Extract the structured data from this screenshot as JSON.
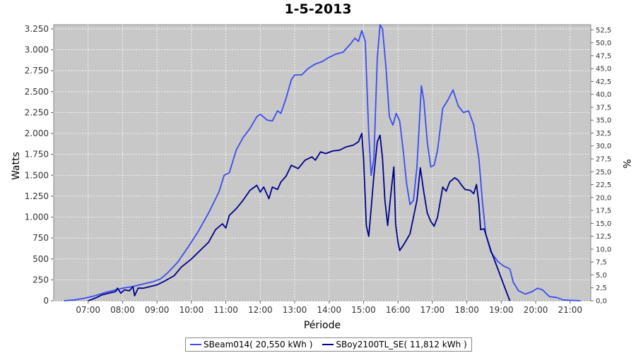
{
  "chart_data": {
    "type": "line",
    "title": "1-5-2013",
    "xlabel": "Période",
    "ylabel": "Watts",
    "y2label": "%",
    "background": "#c8c8c8",
    "grid": true,
    "legend_position": "bottom",
    "x_ticks": [
      "07:00",
      "08:00",
      "09:00",
      "10:00",
      "11:00",
      "12:00",
      "13:00",
      "14:00",
      "15:00",
      "16:00",
      "17:00",
      "18:00",
      "19:00",
      "20:00",
      "21:00"
    ],
    "xlim": [
      6.0,
      21.6
    ],
    "ylim": [
      0,
      3300
    ],
    "y_ticks": [
      0,
      250,
      500,
      750,
      1000,
      1250,
      1500,
      1750,
      2000,
      2250,
      2500,
      2750,
      3000,
      3250
    ],
    "y_tick_labels": [
      "0",
      "250",
      "500",
      "750",
      "1.000",
      "1.250",
      "1.500",
      "1.750",
      "2.000",
      "2.250",
      "2.500",
      "2.750",
      "3.000",
      "3.250"
    ],
    "y2lim": [
      0,
      53.5
    ],
    "y2_ticks": [
      "0,0",
      "2,5",
      "5,0",
      "7,5",
      "10,0",
      "12,5",
      "15,0",
      "17,5",
      "20,0",
      "22,5",
      "25,0",
      "27,5",
      "30,0",
      "32,5",
      "35,0",
      "37,5",
      "40,0",
      "42,5",
      "45,0",
      "47,5",
      "50,0",
      "52,5"
    ],
    "series": [
      {
        "name": "SBeam014( 20,550 kWh )",
        "color": "#3a4cf0",
        "points": [
          [
            6.3,
            0
          ],
          [
            6.6,
            10
          ],
          [
            6.9,
            30
          ],
          [
            7.2,
            60
          ],
          [
            7.5,
            100
          ],
          [
            7.8,
            130
          ],
          [
            8.0,
            150
          ],
          [
            8.3,
            170
          ],
          [
            8.6,
            200
          ],
          [
            8.9,
            230
          ],
          [
            9.1,
            260
          ],
          [
            9.3,
            330
          ],
          [
            9.6,
            460
          ],
          [
            9.9,
            640
          ],
          [
            10.2,
            830
          ],
          [
            10.5,
            1050
          ],
          [
            10.8,
            1300
          ],
          [
            10.95,
            1500
          ],
          [
            11.1,
            1530
          ],
          [
            11.3,
            1800
          ],
          [
            11.5,
            1950
          ],
          [
            11.7,
            2060
          ],
          [
            11.9,
            2200
          ],
          [
            12.0,
            2230
          ],
          [
            12.2,
            2160
          ],
          [
            12.35,
            2150
          ],
          [
            12.5,
            2270
          ],
          [
            12.6,
            2240
          ],
          [
            12.75,
            2420
          ],
          [
            12.9,
            2640
          ],
          [
            13.0,
            2700
          ],
          [
            13.2,
            2700
          ],
          [
            13.4,
            2780
          ],
          [
            13.6,
            2830
          ],
          [
            13.8,
            2860
          ],
          [
            14.0,
            2910
          ],
          [
            14.2,
            2950
          ],
          [
            14.4,
            2970
          ],
          [
            14.6,
            3060
          ],
          [
            14.75,
            3140
          ],
          [
            14.85,
            3100
          ],
          [
            14.95,
            3230
          ],
          [
            15.05,
            3100
          ],
          [
            15.15,
            2000
          ],
          [
            15.22,
            1500
          ],
          [
            15.3,
            1700
          ],
          [
            15.4,
            2900
          ],
          [
            15.48,
            3300
          ],
          [
            15.55,
            3250
          ],
          [
            15.65,
            2800
          ],
          [
            15.75,
            2200
          ],
          [
            15.85,
            2100
          ],
          [
            15.95,
            2240
          ],
          [
            16.05,
            2150
          ],
          [
            16.15,
            1800
          ],
          [
            16.25,
            1400
          ],
          [
            16.35,
            1150
          ],
          [
            16.45,
            1200
          ],
          [
            16.55,
            1600
          ],
          [
            16.68,
            2570
          ],
          [
            16.75,
            2400
          ],
          [
            16.85,
            1900
          ],
          [
            16.95,
            1600
          ],
          [
            17.05,
            1620
          ],
          [
            17.15,
            1800
          ],
          [
            17.3,
            2300
          ],
          [
            17.45,
            2400
          ],
          [
            17.6,
            2520
          ],
          [
            17.75,
            2330
          ],
          [
            17.9,
            2250
          ],
          [
            18.05,
            2270
          ],
          [
            18.2,
            2100
          ],
          [
            18.35,
            1700
          ],
          [
            18.45,
            1200
          ],
          [
            18.55,
            800
          ],
          [
            18.7,
            580
          ],
          [
            18.9,
            470
          ],
          [
            19.05,
            420
          ],
          [
            19.25,
            380
          ],
          [
            19.35,
            220
          ],
          [
            19.5,
            120
          ],
          [
            19.7,
            80
          ],
          [
            19.9,
            110
          ],
          [
            20.05,
            150
          ],
          [
            20.2,
            130
          ],
          [
            20.4,
            50
          ],
          [
            20.6,
            40
          ],
          [
            20.8,
            10
          ],
          [
            21.3,
            0
          ]
        ]
      },
      {
        "name": "SBoy2100TL_SE( 11,812 kWh )",
        "color": "#00008b",
        "points": [
          [
            7.0,
            0
          ],
          [
            7.2,
            30
          ],
          [
            7.4,
            70
          ],
          [
            7.6,
            90
          ],
          [
            7.8,
            110
          ],
          [
            7.85,
            150
          ],
          [
            7.95,
            90
          ],
          [
            8.05,
            130
          ],
          [
            8.2,
            120
          ],
          [
            8.3,
            170
          ],
          [
            8.35,
            60
          ],
          [
            8.45,
            150
          ],
          [
            8.6,
            150
          ],
          [
            8.8,
            170
          ],
          [
            9.0,
            190
          ],
          [
            9.2,
            230
          ],
          [
            9.5,
            300
          ],
          [
            9.7,
            400
          ],
          [
            10.0,
            500
          ],
          [
            10.3,
            620
          ],
          [
            10.5,
            700
          ],
          [
            10.7,
            850
          ],
          [
            10.9,
            920
          ],
          [
            11.0,
            870
          ],
          [
            11.1,
            1020
          ],
          [
            11.3,
            1100
          ],
          [
            11.5,
            1200
          ],
          [
            11.7,
            1320
          ],
          [
            11.9,
            1380
          ],
          [
            12.0,
            1300
          ],
          [
            12.1,
            1360
          ],
          [
            12.25,
            1220
          ],
          [
            12.35,
            1360
          ],
          [
            12.5,
            1330
          ],
          [
            12.6,
            1420
          ],
          [
            12.75,
            1490
          ],
          [
            12.9,
            1620
          ],
          [
            13.1,
            1580
          ],
          [
            13.3,
            1680
          ],
          [
            13.5,
            1720
          ],
          [
            13.6,
            1680
          ],
          [
            13.75,
            1780
          ],
          [
            13.9,
            1760
          ],
          [
            14.1,
            1790
          ],
          [
            14.3,
            1800
          ],
          [
            14.5,
            1840
          ],
          [
            14.7,
            1860
          ],
          [
            14.85,
            1900
          ],
          [
            14.95,
            2000
          ],
          [
            15.0,
            1700
          ],
          [
            15.08,
            900
          ],
          [
            15.15,
            770
          ],
          [
            15.22,
            1100
          ],
          [
            15.3,
            1500
          ],
          [
            15.4,
            1900
          ],
          [
            15.48,
            1980
          ],
          [
            15.55,
            1700
          ],
          [
            15.62,
            1200
          ],
          [
            15.7,
            900
          ],
          [
            15.8,
            1300
          ],
          [
            15.88,
            1600
          ],
          [
            15.93,
            920
          ],
          [
            16.0,
            700
          ],
          [
            16.05,
            600
          ],
          [
            16.15,
            660
          ],
          [
            16.25,
            730
          ],
          [
            16.35,
            800
          ],
          [
            16.45,
            1000
          ],
          [
            16.55,
            1200
          ],
          [
            16.65,
            1590
          ],
          [
            16.75,
            1300
          ],
          [
            16.85,
            1050
          ],
          [
            16.95,
            950
          ],
          [
            17.05,
            890
          ],
          [
            17.15,
            1000
          ],
          [
            17.3,
            1360
          ],
          [
            17.4,
            1310
          ],
          [
            17.5,
            1420
          ],
          [
            17.65,
            1470
          ],
          [
            17.75,
            1440
          ],
          [
            17.85,
            1380
          ],
          [
            17.95,
            1330
          ],
          [
            18.1,
            1320
          ],
          [
            18.2,
            1280
          ],
          [
            18.28,
            1390
          ],
          [
            18.35,
            1160
          ],
          [
            18.4,
            850
          ],
          [
            18.5,
            860
          ],
          [
            18.7,
            600
          ],
          [
            18.9,
            380
          ],
          [
            19.1,
            160
          ],
          [
            19.25,
            0
          ]
        ]
      }
    ]
  }
}
